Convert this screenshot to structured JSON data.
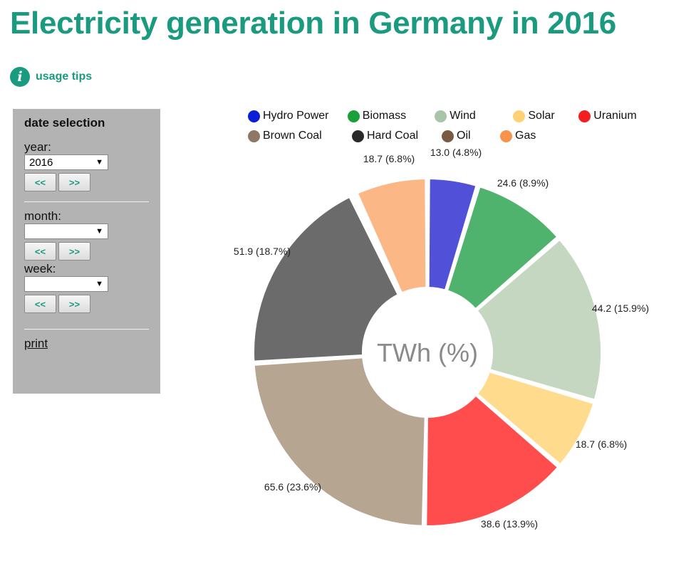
{
  "header": {
    "title": "Electricity generation in Germany in 2016"
  },
  "usage_tips": {
    "icon": "info-icon",
    "label": "usage tips"
  },
  "sidebar": {
    "heading": "date selection",
    "year_label": "year:",
    "year_value": "2016",
    "month_label": "month:",
    "month_value": "",
    "week_label": "week:",
    "week_value": "",
    "prev_label": "<<",
    "next_label": ">>",
    "print_label": "print"
  },
  "colors": {
    "title": "#1a9a7e",
    "sidebar_bg": "#b3b3b3"
  },
  "chart_data": {
    "type": "pie",
    "center_label": "TWh (%)",
    "legend_placement": "top",
    "legend": [
      {
        "name": "Hydro Power",
        "color": "#0a1ed6"
      },
      {
        "name": "Biomass",
        "color": "#1aa03a"
      },
      {
        "name": "Wind",
        "color": "#a9c5a9"
      },
      {
        "name": "Solar",
        "color": "#ffd175"
      },
      {
        "name": "Uranium",
        "color": "#f41e1e"
      },
      {
        "name": "Brown Coal",
        "color": "#8e7766"
      },
      {
        "name": "Hard Coal",
        "color": "#2a2a2a"
      },
      {
        "name": "Oil",
        "color": "#7a5a42"
      },
      {
        "name": "Gas",
        "color": "#f7934a"
      }
    ],
    "slices": [
      {
        "name": "Hydro Power",
        "value": 13.0,
        "percent": 4.8,
        "label": "13.0 (4.8%)",
        "color": "#5050d8"
      },
      {
        "name": "Biomass",
        "value": 24.6,
        "percent": 8.9,
        "label": "24.6 (8.9%)",
        "color": "#4fb36d"
      },
      {
        "name": "Wind",
        "value": 44.2,
        "percent": 15.9,
        "label": "44.2 (15.9%)",
        "color": "#c5d7c1"
      },
      {
        "name": "Solar",
        "value": 18.7,
        "percent": 6.8,
        "label": "18.7 (6.8%)",
        "color": "#ffdb8e"
      },
      {
        "name": "Uranium",
        "value": 38.6,
        "percent": 13.9,
        "label": "38.6 (13.9%)",
        "color": "#ff4d4d"
      },
      {
        "name": "Brown Coal",
        "value": 65.6,
        "percent": 23.6,
        "label": "65.6 (23.6%)",
        "color": "#b5a591"
      },
      {
        "name": "Hard Coal",
        "value": 51.9,
        "percent": 18.7,
        "label": "51.9 (18.7%)",
        "color": "#6b6b6b"
      },
      {
        "name": "Oil",
        "value": 1.3,
        "percent": 0.5,
        "label": "",
        "color": "#9a8a7a"
      },
      {
        "name": "Gas",
        "value": 18.7,
        "percent": 6.8,
        "label": "18.7 (6.8%)",
        "color": "#fbb786"
      }
    ]
  }
}
